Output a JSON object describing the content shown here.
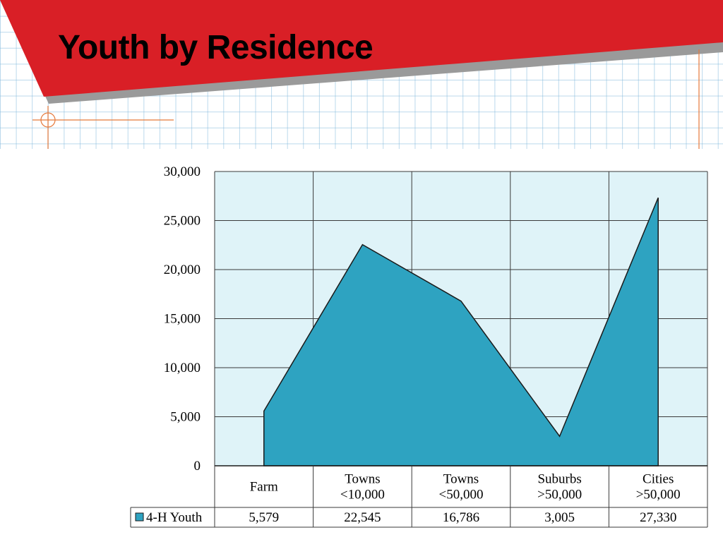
{
  "slide": {
    "title": "Youth by Residence"
  },
  "colors": {
    "banner": "#d91f26",
    "banner_shadow": "#9a9a9a",
    "plot_background": "#dff3f8",
    "series_fill": "#2ea3c1",
    "accent_lines": "#e5793b"
  },
  "chart_data": {
    "type": "area",
    "title": "",
    "xlabel": "",
    "ylabel": "",
    "categories": [
      [
        "Farm"
      ],
      [
        "Towns",
        "<10,000"
      ],
      [
        "Towns",
        "<50,000"
      ],
      [
        "Suburbs",
        ">50,000"
      ],
      [
        "Cities",
        ">50,000"
      ]
    ],
    "series": [
      {
        "name": "4-H Youth",
        "values": [
          5579,
          22545,
          16786,
          3005,
          27330
        ],
        "value_labels": [
          "5,579",
          "22,545",
          "16,786",
          "3,005",
          "27,330"
        ]
      }
    ],
    "ylim": [
      0,
      30000
    ],
    "yticks": [
      0,
      5000,
      10000,
      15000,
      20000,
      25000,
      30000
    ],
    "ytick_labels": [
      "0",
      "5,000",
      "10,000",
      "15,000",
      "20,000",
      "25,000",
      "30,000"
    ],
    "grid": true,
    "legend": "data-table-left"
  }
}
